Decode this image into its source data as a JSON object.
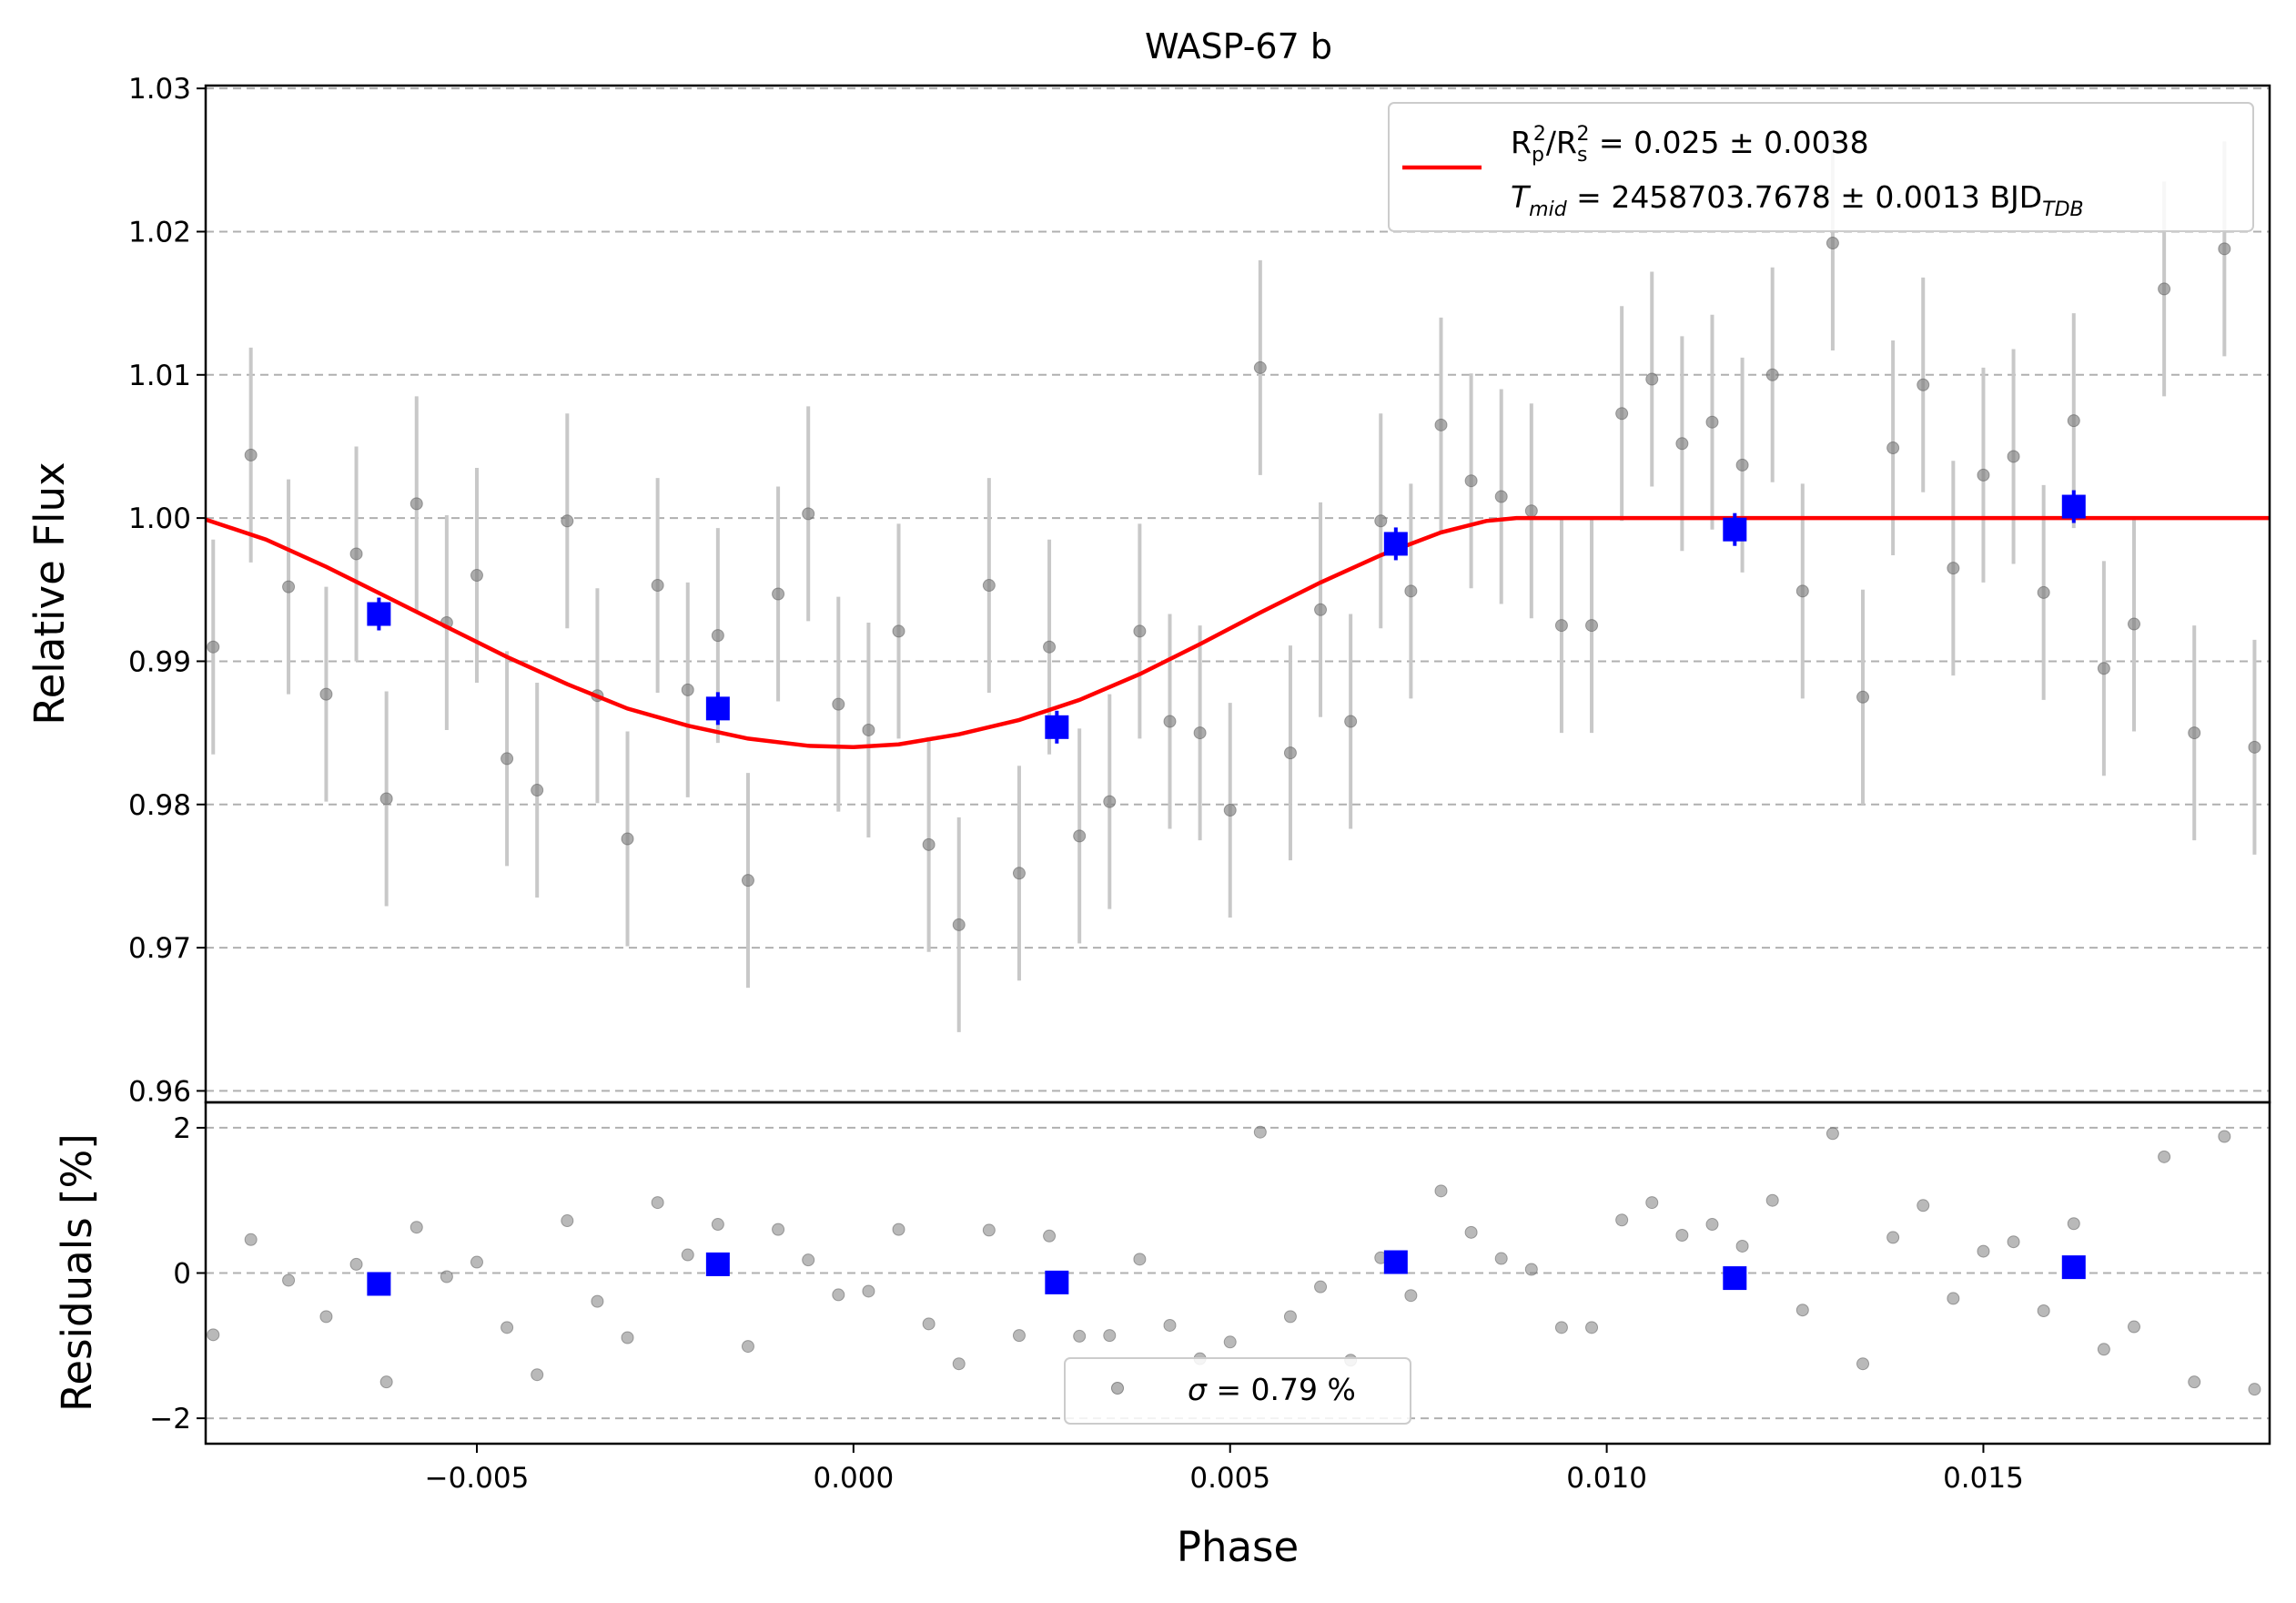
{
  "chart_data": [
    {
      "type": "scatter",
      "panel": "transit",
      "title": "WASP-67 b",
      "xlabel": "",
      "ylabel": "Relative Flux",
      "xlim": [
        -0.0086,
        0.0188
      ],
      "ylim": [
        0.9592,
        1.0302
      ],
      "yticks": [
        "0.96",
        "0.97",
        "0.98",
        "0.99",
        "1.00",
        "1.01",
        "1.02",
        "1.03"
      ],
      "grid": "horizontal dashed",
      "legend_position": "top-right",
      "legend": {
        "model_line_color": "#ff0000",
        "line1": {
          "r1": "R",
          "s1": "p",
          "p1": "2",
          "r2": "/R",
          "s2": "s",
          "p2": "2",
          "tail": " = 0.025 ± 0.0038"
        },
        "line2": {
          "t": "T",
          "s": "mid",
          "tail": " = 2458703.7678 ± 0.0013 BJD",
          "s2": "TDB"
        }
      },
      "model": {
        "name": "transit model",
        "color": "#ff0000",
        "x": [
          -0.0086,
          -0.0078,
          -0.007,
          -0.0062,
          -0.0054,
          -0.0046,
          -0.0038,
          -0.003,
          -0.0022,
          -0.0014,
          -0.0006,
          0.0,
          0.0006,
          0.0014,
          0.0022,
          0.003,
          0.0038,
          0.0046,
          0.0054,
          0.0062,
          0.007,
          0.0078,
          0.0084,
          0.0088,
          0.01,
          0.0188
        ],
        "y": [
          0.9999,
          0.9985,
          0.9966,
          0.9945,
          0.9924,
          0.9903,
          0.9884,
          0.9867,
          0.9855,
          0.9846,
          0.9841,
          0.984,
          0.9842,
          0.9849,
          0.9859,
          0.9873,
          0.9891,
          0.9912,
          0.9934,
          0.9955,
          0.9974,
          0.999,
          0.9998,
          1.0,
          1.0,
          1.0
        ]
      },
      "binned": {
        "color": "#0000ff",
        "x": [
          -0.0063,
          -0.0018,
          0.0027,
          0.0072,
          0.0117,
          0.0162
        ],
        "y": [
          0.9933,
          0.9867,
          0.9854,
          0.9982,
          0.9992,
          1.0008
        ]
      },
      "raw": {
        "color": "#808080",
        "errorbar_color": "#c8c8c8",
        "yerr": 0.0075,
        "x": [
          -0.0085,
          -0.008,
          -0.0075,
          -0.007,
          -0.0066,
          -0.0062,
          -0.0058,
          -0.0054,
          -0.005,
          -0.0046,
          -0.0042,
          -0.0038,
          -0.0034,
          -0.003,
          -0.0026,
          -0.0022,
          -0.0018,
          -0.0014,
          -0.001,
          -0.0006,
          -0.0002,
          0.0002,
          0.0006,
          0.001,
          0.0014,
          0.0018,
          0.0022,
          0.0026,
          0.003,
          0.0034,
          0.0038,
          0.0042,
          0.0046,
          0.005,
          0.0054,
          0.0058,
          0.0062,
          0.0066,
          0.007,
          0.0074,
          0.0078,
          0.0082,
          0.0086,
          0.009,
          0.0094,
          0.0098,
          0.0102,
          0.0106,
          0.011,
          0.0114,
          0.0118,
          0.0122,
          0.0126,
          0.013,
          0.0134,
          0.0138,
          0.0142,
          0.0146,
          0.015,
          0.0154,
          0.0158,
          0.0162,
          0.0166,
          0.017,
          0.0174,
          0.0178,
          0.0182,
          0.0186
        ],
        "y": [
          0.991,
          1.0044,
          0.9952,
          0.9877,
          0.9975,
          0.9804,
          1.001,
          0.9927,
          0.996,
          0.9832,
          0.981,
          0.9998,
          0.9876,
          0.9776,
          0.9953,
          0.988,
          0.9918,
          0.9747,
          0.9947,
          1.0003,
          0.987,
          0.9852,
          0.9921,
          0.9772,
          0.9716,
          0.9953,
          0.9752,
          0.991,
          0.9778,
          0.9802,
          0.9921,
          0.9858,
          0.985,
          0.9796,
          1.0105,
          0.9836,
          0.9936,
          0.9858,
          0.9998,
          0.9949,
          1.0065,
          1.0026,
          1.0015,
          1.0005,
          0.9925,
          0.9925,
          1.0073,
          1.0097,
          1.0052,
          1.0067,
          1.0037,
          1.01,
          0.9949,
          1.0192,
          0.9875,
          1.0049,
          1.0093,
          0.9965,
          1.003,
          1.0043,
          0.9948,
          1.0068,
          0.9895,
          0.9926,
          1.016,
          0.985,
          1.0188,
          0.984
        ]
      }
    },
    {
      "type": "scatter",
      "panel": "residuals",
      "xlabel": "Phase",
      "ylabel": "Residuals [%]",
      "xlim": [
        -0.0086,
        0.0188
      ],
      "ylim": [
        -2.35,
        2.35
      ],
      "xticks": [
        "−0.005",
        "0.000",
        "0.005",
        "0.010",
        "0.015"
      ],
      "xtick_values": [
        -0.005,
        0.0,
        0.005,
        0.01,
        0.015
      ],
      "yticks": [
        "−2",
        "0",
        "2"
      ],
      "ytick_values": [
        -2,
        0,
        2
      ],
      "grid": "horizontal dashed",
      "legend_position": "lower-center",
      "legend": {
        "sigma_symbol": "σ",
        "sigma_tail": " = 0.79 %"
      },
      "binned": {
        "color": "#0000ff",
        "x": [
          -0.0063,
          -0.0018,
          0.0027,
          0.0072,
          0.0117,
          0.0162
        ],
        "y": [
          -0.15,
          0.12,
          -0.13,
          0.15,
          -0.07,
          0.08
        ]
      },
      "raw": {
        "color": "#808080",
        "x": [
          -0.0085,
          -0.008,
          -0.0075,
          -0.007,
          -0.0066,
          -0.0062,
          -0.0058,
          -0.0054,
          -0.005,
          -0.0046,
          -0.0042,
          -0.0038,
          -0.0034,
          -0.003,
          -0.0026,
          -0.0022,
          -0.0018,
          -0.0014,
          -0.001,
          -0.0006,
          -0.0002,
          0.0002,
          0.0006,
          0.001,
          0.0014,
          0.0018,
          0.0022,
          0.0026,
          0.003,
          0.0034,
          0.0038,
          0.0042,
          0.0046,
          0.005,
          0.0054,
          0.0058,
          0.0062,
          0.0066,
          0.007,
          0.0074,
          0.0078,
          0.0082,
          0.0086,
          0.009,
          0.0094,
          0.0098,
          0.0102,
          0.0106,
          0.011,
          0.0114,
          0.0118,
          0.0122,
          0.0126,
          0.013,
          0.0134,
          0.0138,
          0.0142,
          0.0146,
          0.015,
          0.0154,
          0.0158,
          0.0162,
          0.0166,
          0.017,
          0.0174,
          0.0178,
          0.0182,
          0.0186
        ],
        "y": [
          -0.85,
          0.46,
          -0.1,
          -0.6,
          0.12,
          -1.5,
          0.63,
          -0.05,
          0.15,
          -0.75,
          -1.4,
          0.72,
          -0.39,
          -0.89,
          0.97,
          0.25,
          0.67,
          -1.01,
          0.6,
          0.18,
          -0.3,
          -0.25,
          0.6,
          -0.7,
          -1.25,
          0.59,
          -0.86,
          0.51,
          -0.87,
          -0.86,
          0.19,
          -0.72,
          -1.18,
          -0.95,
          1.94,
          -0.6,
          -0.19,
          -1.2,
          0.21,
          -0.31,
          1.13,
          0.56,
          0.2,
          0.05,
          -0.75,
          -0.75,
          0.73,
          0.97,
          0.52,
          0.67,
          0.37,
          1.0,
          -0.51,
          1.92,
          -1.25,
          0.49,
          0.93,
          -0.35,
          0.3,
          0.43,
          -0.52,
          0.68,
          -1.05,
          -0.74,
          1.6,
          -1.5,
          1.88,
          -1.6
        ]
      }
    }
  ]
}
